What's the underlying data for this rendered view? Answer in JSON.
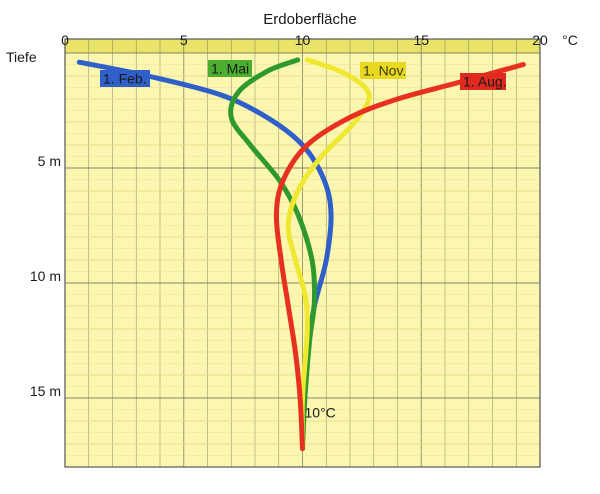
{
  "chart_data": {
    "type": "line",
    "title": "Erdoberfläche",
    "x_unit": "°C",
    "y_label": "Tiefe",
    "y_unit": "m",
    "x_ticks": [
      "0",
      "5",
      "10",
      "15",
      "20"
    ],
    "y_ticks": [
      {
        "value": 5,
        "label": "5 m"
      },
      {
        "value": 10,
        "label": "10 m"
      },
      {
        "value": 15,
        "label": "15 m"
      }
    ],
    "xlim": [
      0,
      20
    ],
    "ylim": [
      0,
      18
    ],
    "grid": true,
    "annotation": {
      "text": "10°C",
      "x": 10,
      "y": 16.8
    },
    "colors": {
      "background": "#fbf7b0",
      "grid": "#7a7a5a",
      "gridlight": "#e4dc88"
    },
    "series": [
      {
        "name": "1. Feb.",
        "color": "#2f5fc8",
        "label_color": "#2f5fc8",
        "x": [
          0.6,
          3.5,
          6.5,
          8.5,
          10.0,
          10.9,
          11.2,
          11.0,
          10.5,
          10.2,
          10.0,
          10.0
        ],
        "y": [
          0.4,
          1.0,
          1.8,
          2.8,
          4.0,
          5.5,
          7.0,
          9.0,
          11.0,
          13.0,
          15.0,
          17.2
        ]
      },
      {
        "name": "1. Mai",
        "color": "#2e9a2e",
        "label_color": "#4cae2e",
        "x": [
          9.8,
          8.5,
          7.3,
          7.0,
          7.8,
          9.0,
          9.8,
          10.4,
          10.5,
          10.3,
          10.1,
          10.0
        ],
        "y": [
          0.3,
          0.8,
          1.7,
          2.8,
          4.0,
          5.5,
          7.0,
          9.0,
          10.8,
          12.5,
          15.0,
          17.2
        ]
      },
      {
        "name": "1. Nov.",
        "color": "#f0e830",
        "label_color": "#e8d820",
        "x": [
          10.2,
          11.8,
          12.8,
          12.2,
          10.8,
          9.8,
          9.4,
          9.7,
          10.1,
          10.2,
          10.0,
          10.0
        ],
        "y": [
          0.3,
          0.9,
          1.8,
          3.0,
          4.5,
          6.0,
          7.5,
          9.0,
          10.5,
          12.0,
          15.0,
          17.2
        ]
      },
      {
        "name": "1. Aug.",
        "color": "#e83020",
        "label_color": "#e02a20",
        "x": [
          19.3,
          16.5,
          14.0,
          12.0,
          10.2,
          9.2,
          8.9,
          9.1,
          9.4,
          9.7,
          9.9,
          10.0
        ],
        "y": [
          0.5,
          1.3,
          2.0,
          2.8,
          4.0,
          5.5,
          7.0,
          9.0,
          11.0,
          13.0,
          15.0,
          17.2
        ]
      }
    ]
  }
}
